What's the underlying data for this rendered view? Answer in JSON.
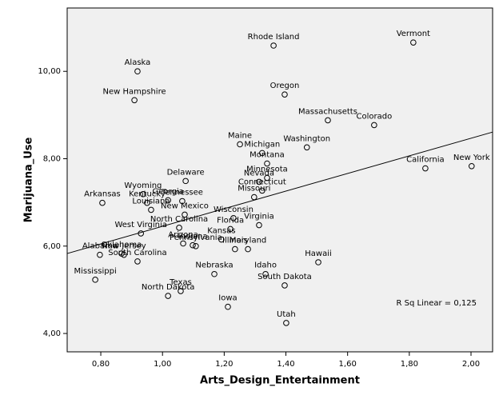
{
  "chart_data": {
    "type": "scatter",
    "x_label": "Arts_Design_Entertainment",
    "y_label": "Marijuana_Use",
    "annotation": "R Sq Linear = 0,125",
    "xlim": [
      0.691,
      2.07
    ],
    "ylim": [
      3.58,
      11.45
    ],
    "xticks": [
      {
        "value": 0.8,
        "label": "0,80"
      },
      {
        "value": 1.0,
        "label": "1,00"
      },
      {
        "value": 1.2,
        "label": "1,20"
      },
      {
        "value": 1.4,
        "label": "1,40"
      },
      {
        "value": 1.6,
        "label": "1,60"
      },
      {
        "value": 1.8,
        "label": "1,80"
      },
      {
        "value": 2.0,
        "label": "2,00"
      }
    ],
    "yticks": [
      {
        "value": 4,
        "label": "4,00"
      },
      {
        "value": 6,
        "label": "6,00"
      },
      {
        "value": 8,
        "label": "8,00"
      },
      {
        "value": 10,
        "label": "10,00"
      }
    ],
    "labels": [
      "Rhode Island",
      "Vermont",
      "Alaska",
      "New Hampshire",
      "Oregon",
      "Massachusetts",
      "Colorado",
      "Maine",
      "Michigan",
      "Washington",
      "Montana",
      "California",
      "New York",
      "Delaware",
      "Nevada",
      "Minnesota",
      "Wyoming",
      "Missouri",
      "Connecticut",
      "Arkansas",
      "Georgia",
      "Kentucky",
      "Tennessee",
      "Louisiana",
      "New Mexico",
      "Wisconsin",
      "Florida",
      "Virginia",
      "North Carolina",
      "West Virginia",
      "Arizona",
      "Indiana",
      "Pennsylvania",
      "Kansas",
      "Illinois",
      "Maryland",
      "Oklahoma",
      "New Jersey",
      "South Carolina",
      "Hawaii",
      "Alabama",
      "Nebraska",
      "Idaho",
      "South Dakota",
      "Mississippi",
      "Texas",
      "North Dakota",
      "Iowa",
      "Utah"
    ],
    "x": [
      1.36,
      1.813,
      0.919,
      0.909,
      1.396,
      1.536,
      1.686,
      1.251,
      1.323,
      1.468,
      1.339,
      1.852,
      2.002,
      1.075,
      1.313,
      1.339,
      0.937,
      1.297,
      1.323,
      0.805,
      1.018,
      0.95,
      1.064,
      0.963,
      1.072,
      1.23,
      1.22,
      1.313,
      1.054,
      0.93,
      1.067,
      1.098,
      1.108,
      1.191,
      1.235,
      1.277,
      0.867,
      0.875,
      0.919,
      1.505,
      0.797,
      1.168,
      1.334,
      1.396,
      0.782,
      1.059,
      1.018,
      1.212,
      1.401
    ],
    "values": [
      10.59,
      10.66,
      10.0,
      9.34,
      9.47,
      8.88,
      8.77,
      8.33,
      8.13,
      8.26,
      7.89,
      7.78,
      7.83,
      7.49,
      7.47,
      7.56,
      7.19,
      7.12,
      7.27,
      6.99,
      7.05,
      6.99,
      7.03,
      6.83,
      6.72,
      6.64,
      6.39,
      6.48,
      6.42,
      6.29,
      6.06,
      6.02,
      6.0,
      6.15,
      5.93,
      5.93,
      5.83,
      5.8,
      5.65,
      5.63,
      5.8,
      5.36,
      5.36,
      5.1,
      5.23,
      4.97,
      4.86,
      4.61,
      4.24
    ],
    "fit_line": {
      "x": [
        0.691,
        2.07
      ],
      "values": [
        5.83,
        8.61
      ]
    }
  }
}
